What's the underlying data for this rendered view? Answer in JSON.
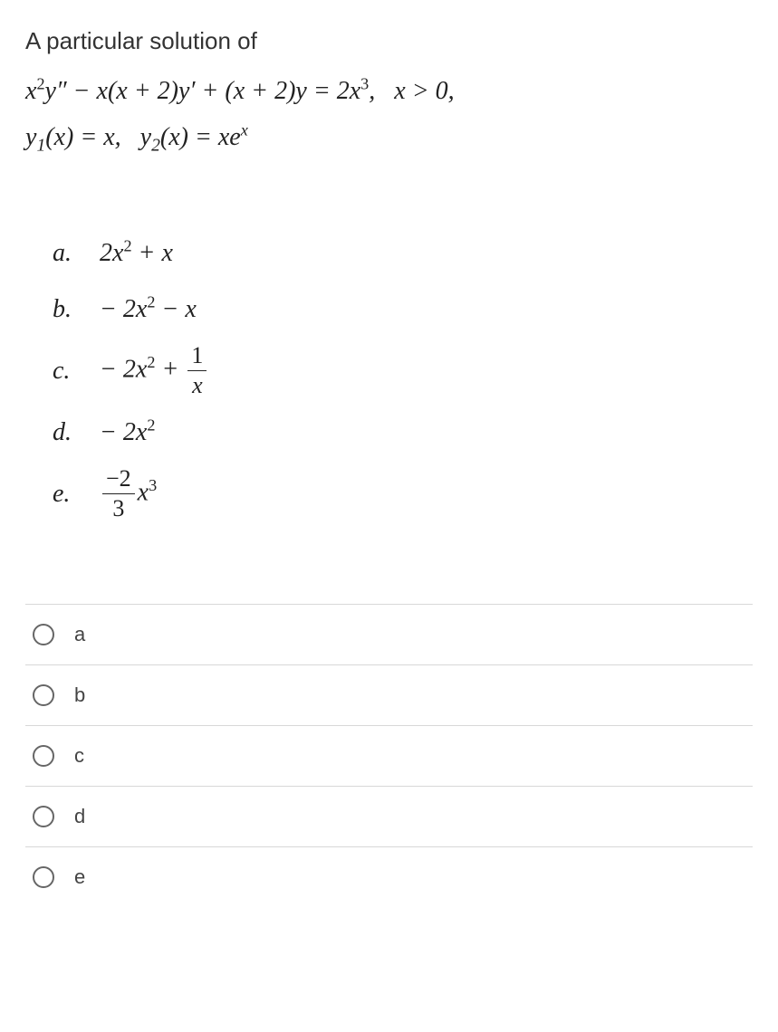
{
  "question": {
    "header": "A particular solution of",
    "equation_line1_html": "<span class='italic'>x</span><span class='sup'>2</span><span class='italic'>y</span>″ − <span class='italic'>x</span>(<span class='italic'>x</span> + 2)<span class='italic'>y</span>′ + (<span class='italic'>x</span> + 2)<span class='italic'>y</span> = 2<span class='italic'>x</span><span class='sup'>3</span>, &nbsp; <span class='italic'>x</span> > 0,",
    "equation_line2_html": "<span class='italic'>y</span><span class='sub'>1</span>(<span class='italic'>x</span>) = <span class='italic'>x</span>, &nbsp; <span class='italic'>y</span><span class='sub'>2</span>(<span class='italic'>x</span>) = <span class='italic'>xe</span><span class='sup' style='font-style:italic'>x</span>"
  },
  "options": {
    "a": {
      "letter": "a.",
      "math_html": "2<span class='italic'>x</span><span class='sup'>2</span> + <span class='italic'>x</span>"
    },
    "b": {
      "letter": "b.",
      "math_html": "− 2<span class='italic'>x</span><span class='sup'>2</span> − <span class='italic'>x</span>"
    },
    "c": {
      "letter": "c.",
      "math_html": "− 2<span class='italic'>x</span><span class='sup'>2</span> + <span class='frac'><span class='num upright'>1</span><span class='den'><span class='italic'>x</span></span></span>"
    },
    "d": {
      "letter": "d.",
      "math_html": "− 2<span class='italic'>x</span><span class='sup'>2</span>"
    },
    "e": {
      "letter": "e.",
      "math_html": "<span class='frac'><span class='num upright'>−2</span><span class='den upright'>3</span></span><span class='italic'>x</span><span class='sup'>3</span>"
    }
  },
  "answers": {
    "a": "a",
    "b": "b",
    "c": "c",
    "d": "d",
    "e": "e"
  },
  "styling": {
    "body_width": 859,
    "body_height": 1140,
    "bg_color": "#ffffff",
    "text_color": "#333333",
    "header_fontsize": 26,
    "equation_fontsize": 28,
    "option_fontsize": 28,
    "answer_fontsize": 22,
    "radio_border_color": "#666666",
    "divider_color": "#d8d8d8"
  }
}
